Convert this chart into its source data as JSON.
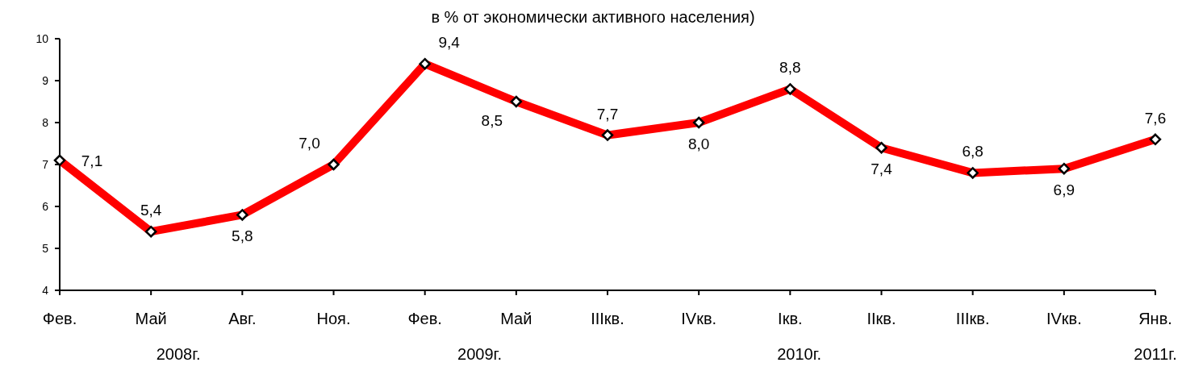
{
  "chart_data": {
    "type": "line",
    "title": "в % от экономически активного населения)",
    "categories": [
      "Фев.",
      "Май",
      "Авг.",
      "Ноя.",
      "Фев.",
      "Май",
      "IIIкв.",
      "IVкв.",
      "Iкв.",
      "IIкв.",
      "IIIкв.",
      "IVкв.",
      "Янв."
    ],
    "series": [
      {
        "color": "#ff0000",
        "values": [
          7.1,
          5.4,
          5.8,
          7.0,
          9.4,
          8.5,
          7.7,
          8.0,
          8.8,
          7.4,
          6.8,
          6.9,
          7.6
        ],
        "value_labels": [
          "7,1",
          "5,4",
          "5,8",
          "7,0",
          "9,4",
          "8,5",
          "7,7",
          "8,0",
          "8,8",
          "7,4",
          "6,8",
          "6,9",
          "7,6"
        ]
      }
    ],
    "ylim": [
      4,
      10
    ],
    "yticks": [
      4,
      5,
      6,
      7,
      8,
      9,
      10
    ],
    "marker": "diamond",
    "line_style": "solid",
    "grid": false,
    "annotations": [
      "2008г.",
      "2009г.",
      "2010г.",
      "2011г."
    ]
  }
}
